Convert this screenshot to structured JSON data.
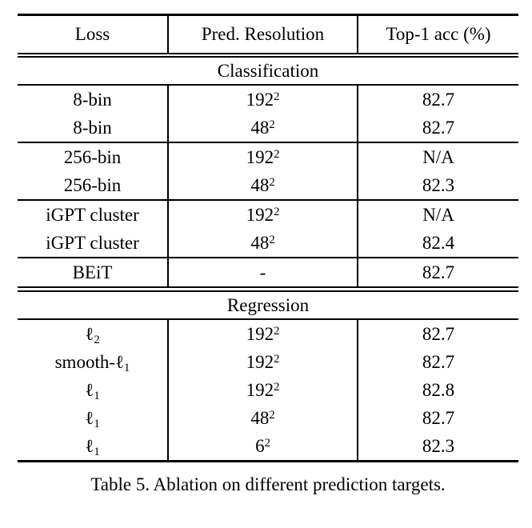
{
  "table": {
    "columns": [
      "Loss",
      "Pred. Resolution",
      "Top-1 acc (%)"
    ],
    "sections": [
      {
        "title": "Classification",
        "groups": [
          [
            {
              "loss": {
                "text": "8-bin",
                "sub": ""
              },
              "resolution": {
                "base": "192",
                "sup": "2"
              },
              "acc": "82.7"
            },
            {
              "loss": {
                "text": "8-bin",
                "sub": ""
              },
              "resolution": {
                "base": "48",
                "sup": "2"
              },
              "acc": "82.7"
            }
          ],
          [
            {
              "loss": {
                "text": "256-bin",
                "sub": ""
              },
              "resolution": {
                "base": "192",
                "sup": "2"
              },
              "acc": "N/A"
            },
            {
              "loss": {
                "text": "256-bin",
                "sub": ""
              },
              "resolution": {
                "base": "48",
                "sup": "2"
              },
              "acc": "82.3"
            }
          ],
          [
            {
              "loss": {
                "text": "iGPT cluster",
                "sub": ""
              },
              "resolution": {
                "base": "192",
                "sup": "2"
              },
              "acc": "N/A"
            },
            {
              "loss": {
                "text": "iGPT cluster",
                "sub": ""
              },
              "resolution": {
                "base": "48",
                "sup": "2"
              },
              "acc": "82.4"
            }
          ],
          [
            {
              "loss": {
                "text": "BEiT",
                "sub": ""
              },
              "resolution": {
                "base": "-",
                "sup": ""
              },
              "acc": "82.7"
            }
          ]
        ]
      },
      {
        "title": "Regression",
        "groups": [
          [
            {
              "loss": {
                "text": "ℓ",
                "sub": "2"
              },
              "resolution": {
                "base": "192",
                "sup": "2"
              },
              "acc": "82.7"
            },
            {
              "loss": {
                "text": "smooth-ℓ",
                "sub": "1"
              },
              "resolution": {
                "base": "192",
                "sup": "2"
              },
              "acc": "82.7"
            },
            {
              "loss": {
                "text": "ℓ",
                "sub": "1"
              },
              "resolution": {
                "base": "192",
                "sup": "2"
              },
              "acc": "82.8"
            },
            {
              "loss": {
                "text": "ℓ",
                "sub": "1"
              },
              "resolution": {
                "base": "48",
                "sup": "2"
              },
              "acc": "82.7"
            },
            {
              "loss": {
                "text": "ℓ",
                "sub": "1"
              },
              "resolution": {
                "base": "6",
                "sup": "2"
              },
              "acc": "82.3"
            }
          ]
        ]
      }
    ],
    "caption": "Table 5. Ablation on different prediction targets."
  }
}
